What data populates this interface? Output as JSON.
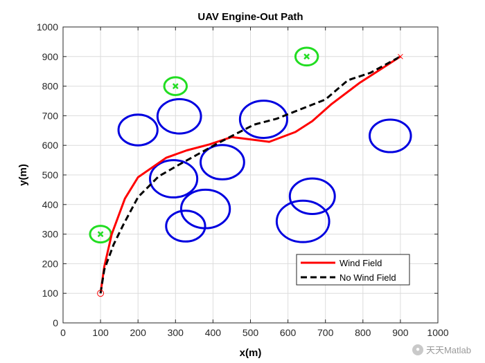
{
  "chart_data": {
    "type": "line",
    "title": "UAV Engine-Out Path",
    "xlabel": "x(m)",
    "ylabel": "y(m)",
    "xlim": [
      0,
      1000
    ],
    "ylim": [
      0,
      1000
    ],
    "xticks": [
      0,
      100,
      200,
      300,
      400,
      500,
      600,
      700,
      800,
      900,
      1000
    ],
    "yticks": [
      0,
      100,
      200,
      300,
      400,
      500,
      600,
      700,
      800,
      900,
      1000
    ],
    "grid": true,
    "legend_position": "bottom-right",
    "series": [
      {
        "name": "Wind Field",
        "color": "#ff0000",
        "style": "solid",
        "x": [
          100,
          110,
          130,
          165,
          200,
          275,
          330,
          390,
          450,
          500,
          550,
          620,
          665,
          715,
          790,
          900
        ],
        "y": [
          100,
          190,
          300,
          420,
          492,
          558,
          583,
          603,
          628,
          620,
          612,
          645,
          682,
          738,
          810,
          900
        ]
      },
      {
        "name": "No Wind Field",
        "color": "#000000",
        "style": "dashed",
        "x": [
          100,
          110,
          135,
          160,
          200,
          255,
          310,
          360,
          410,
          460,
          510,
          570,
          630,
          700,
          760,
          820,
          900
        ],
        "y": [
          100,
          180,
          265,
          330,
          425,
          495,
          535,
          570,
          605,
          638,
          670,
          690,
          720,
          755,
          820,
          845,
          900
        ]
      }
    ],
    "obstacles": {
      "color": "#0000e0",
      "shape": "ellipse",
      "items": [
        {
          "cx": 200,
          "cy": 652,
          "rx": 52,
          "ry": 52
        },
        {
          "cx": 310,
          "cy": 698,
          "rx": 58,
          "ry": 58
        },
        {
          "cx": 535,
          "cy": 688,
          "rx": 63,
          "ry": 63
        },
        {
          "cx": 873,
          "cy": 632,
          "rx": 55,
          "ry": 55
        },
        {
          "cx": 295,
          "cy": 487,
          "rx": 63,
          "ry": 63
        },
        {
          "cx": 425,
          "cy": 543,
          "rx": 58,
          "ry": 58
        },
        {
          "cx": 380,
          "cy": 385,
          "rx": 65,
          "ry": 65
        },
        {
          "cx": 327,
          "cy": 327,
          "rx": 52,
          "ry": 52
        },
        {
          "cx": 665,
          "cy": 428,
          "rx": 60,
          "ry": 60
        },
        {
          "cx": 640,
          "cy": 343,
          "rx": 70,
          "ry": 70
        }
      ]
    },
    "landing_sites": {
      "color": "#22dd22",
      "marker": "x",
      "items": [
        {
          "cx": 100,
          "cy": 300,
          "rx": 28,
          "ry": 28
        },
        {
          "cx": 300,
          "cy": 800,
          "rx": 30,
          "ry": 30
        },
        {
          "cx": 650,
          "cy": 900,
          "rx": 30,
          "ry": 30
        }
      ]
    },
    "start_point": {
      "x": 100,
      "y": 100,
      "marker": "o",
      "color": "#ff0000"
    },
    "end_point": {
      "x": 900,
      "y": 900,
      "marker": "x",
      "color": "#ff0000"
    }
  },
  "watermark": {
    "icon": "wechat-icon",
    "text": "天天Matlab"
  }
}
